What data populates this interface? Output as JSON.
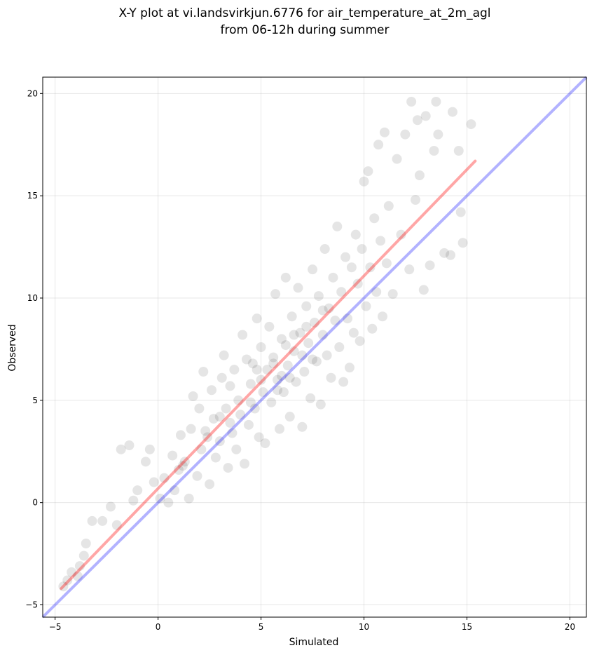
{
  "chart_data": {
    "type": "scatter",
    "title_lines": [
      "X-Y plot at vi.landsvirkjun.6776 for air_temperature_at_2m_agl",
      "from 06-12h during summer"
    ],
    "xlabel": "Simulated",
    "ylabel": "Observed",
    "xlim": [
      -5.6,
      20.8
    ],
    "ylim": [
      -5.6,
      20.8
    ],
    "xticks": [
      -5,
      0,
      5,
      10,
      15,
      20
    ],
    "yticks": [
      -5,
      0,
      5,
      10,
      15,
      20
    ],
    "xtick_labels": [
      "−5",
      "0",
      "5",
      "10",
      "15",
      "20"
    ],
    "ytick_labels": [
      "−5",
      "0",
      "5",
      "10",
      "15",
      "20"
    ],
    "grid": true,
    "point_color": "#000000",
    "point_alpha": 0.1,
    "points": [
      [
        -4.6,
        -4.1
      ],
      [
        -4.4,
        -3.8
      ],
      [
        -4.2,
        -3.4
      ],
      [
        -3.9,
        -3.6
      ],
      [
        -3.8,
        -3.1
      ],
      [
        -3.6,
        -2.6
      ],
      [
        -3.5,
        -2.0
      ],
      [
        -3.2,
        -0.9
      ],
      [
        -2.7,
        -0.9
      ],
      [
        -2.3,
        -0.2
      ],
      [
        -2.0,
        -1.1
      ],
      [
        -1.8,
        2.6
      ],
      [
        -1.4,
        2.8
      ],
      [
        -1.2,
        0.1
      ],
      [
        -1.0,
        0.6
      ],
      [
        -0.6,
        2.0
      ],
      [
        -0.4,
        2.6
      ],
      [
        -0.2,
        1.0
      ],
      [
        0.1,
        0.2
      ],
      [
        0.3,
        1.2
      ],
      [
        0.5,
        0.0
      ],
      [
        0.7,
        2.3
      ],
      [
        0.8,
        0.6
      ],
      [
        1.0,
        1.6
      ],
      [
        1.1,
        3.3
      ],
      [
        1.3,
        2.0
      ],
      [
        1.5,
        0.2
      ],
      [
        1.6,
        3.6
      ],
      [
        1.7,
        5.2
      ],
      [
        1.9,
        1.3
      ],
      [
        2.0,
        4.6
      ],
      [
        2.1,
        2.6
      ],
      [
        2.2,
        6.4
      ],
      [
        2.3,
        3.5
      ],
      [
        2.5,
        0.9
      ],
      [
        2.6,
        5.5
      ],
      [
        2.7,
        4.1
      ],
      [
        2.8,
        2.2
      ],
      [
        3.0,
        3.0
      ],
      [
        3.1,
        6.1
      ],
      [
        3.2,
        7.2
      ],
      [
        3.3,
        4.6
      ],
      [
        3.4,
        1.7
      ],
      [
        3.5,
        5.7
      ],
      [
        3.6,
        3.4
      ],
      [
        3.7,
        6.5
      ],
      [
        3.8,
        2.6
      ],
      [
        3.9,
        5.0
      ],
      [
        4.0,
        4.3
      ],
      [
        4.1,
        8.2
      ],
      [
        4.2,
        1.9
      ],
      [
        4.3,
        7.0
      ],
      [
        4.4,
        3.8
      ],
      [
        4.5,
        5.8
      ],
      [
        4.6,
        6.8
      ],
      [
        4.7,
        4.6
      ],
      [
        4.8,
        9.0
      ],
      [
        4.9,
        3.2
      ],
      [
        5.0,
        7.6
      ],
      [
        5.1,
        5.4
      ],
      [
        5.2,
        2.9
      ],
      [
        5.3,
        6.5
      ],
      [
        5.4,
        8.6
      ],
      [
        5.5,
        4.9
      ],
      [
        5.6,
        7.1
      ],
      [
        5.7,
        10.2
      ],
      [
        5.8,
        6.0
      ],
      [
        5.9,
        3.6
      ],
      [
        6.0,
        8.0
      ],
      [
        6.1,
        5.4
      ],
      [
        6.2,
        11.0
      ],
      [
        6.3,
        6.7
      ],
      [
        6.4,
        4.2
      ],
      [
        6.5,
        9.1
      ],
      [
        6.6,
        7.4
      ],
      [
        6.7,
        5.9
      ],
      [
        6.8,
        10.5
      ],
      [
        6.9,
        8.3
      ],
      [
        7.0,
        3.7
      ],
      [
        7.1,
        6.4
      ],
      [
        7.2,
        9.6
      ],
      [
        7.3,
        7.8
      ],
      [
        7.4,
        5.1
      ],
      [
        7.5,
        11.4
      ],
      [
        7.6,
        8.8
      ],
      [
        7.7,
        6.9
      ],
      [
        7.8,
        10.1
      ],
      [
        7.9,
        4.8
      ],
      [
        8.0,
        8.2
      ],
      [
        8.1,
        12.4
      ],
      [
        8.2,
        7.2
      ],
      [
        8.3,
        9.5
      ],
      [
        8.4,
        6.1
      ],
      [
        8.5,
        11.0
      ],
      [
        8.6,
        8.9
      ],
      [
        8.7,
        13.5
      ],
      [
        8.8,
        7.6
      ],
      [
        8.9,
        10.3
      ],
      [
        9.0,
        5.9
      ],
      [
        9.1,
        12.0
      ],
      [
        9.2,
        9.0
      ],
      [
        9.3,
        6.6
      ],
      [
        9.4,
        11.5
      ],
      [
        9.5,
        8.3
      ],
      [
        9.6,
        13.1
      ],
      [
        9.7,
        10.7
      ],
      [
        9.8,
        7.9
      ],
      [
        9.9,
        12.4
      ],
      [
        10.0,
        15.7
      ],
      [
        10.1,
        9.6
      ],
      [
        10.2,
        16.2
      ],
      [
        10.3,
        11.5
      ],
      [
        10.4,
        8.5
      ],
      [
        10.5,
        13.9
      ],
      [
        10.6,
        10.3
      ],
      [
        10.7,
        17.5
      ],
      [
        10.8,
        12.8
      ],
      [
        10.9,
        9.1
      ],
      [
        11.0,
        18.1
      ],
      [
        11.1,
        11.7
      ],
      [
        11.2,
        14.5
      ],
      [
        11.4,
        10.2
      ],
      [
        11.6,
        16.8
      ],
      [
        11.8,
        13.1
      ],
      [
        12.0,
        18.0
      ],
      [
        12.2,
        11.4
      ],
      [
        12.3,
        19.6
      ],
      [
        12.5,
        14.8
      ],
      [
        12.6,
        18.7
      ],
      [
        12.7,
        16.0
      ],
      [
        12.9,
        10.4
      ],
      [
        13.0,
        18.9
      ],
      [
        13.2,
        11.6
      ],
      [
        13.4,
        17.2
      ],
      [
        13.5,
        19.6
      ],
      [
        13.6,
        18.0
      ],
      [
        13.9,
        12.2
      ],
      [
        14.2,
        12.1
      ],
      [
        14.3,
        19.1
      ],
      [
        14.6,
        17.2
      ],
      [
        14.7,
        14.2
      ],
      [
        14.8,
        12.7
      ],
      [
        15.2,
        18.5
      ],
      [
        6.0,
        6.2
      ],
      [
        5.8,
        5.5
      ],
      [
        6.4,
        6.1
      ],
      [
        7.0,
        7.2
      ],
      [
        7.5,
        7.0
      ],
      [
        4.5,
        4.9
      ],
      [
        3.5,
        3.9
      ],
      [
        5.0,
        6.0
      ],
      [
        6.6,
        8.2
      ],
      [
        7.2,
        8.6
      ],
      [
        8.0,
        9.4
      ],
      [
        4.8,
        6.5
      ],
      [
        5.6,
        6.8
      ],
      [
        6.2,
        7.7
      ],
      [
        3.0,
        4.2
      ],
      [
        2.4,
        3.2
      ],
      [
        1.2,
        1.8
      ]
    ],
    "fit_line": {
      "x": [
        -4.7,
        15.4
      ],
      "y": [
        -4.2,
        16.7
      ],
      "color": "#ff0000",
      "alpha": 0.35
    },
    "identity_line": {
      "x": [
        -5.6,
        20.8
      ],
      "y": [
        -5.6,
        20.8
      ],
      "color": "#0000ff",
      "alpha": 0.3
    }
  }
}
